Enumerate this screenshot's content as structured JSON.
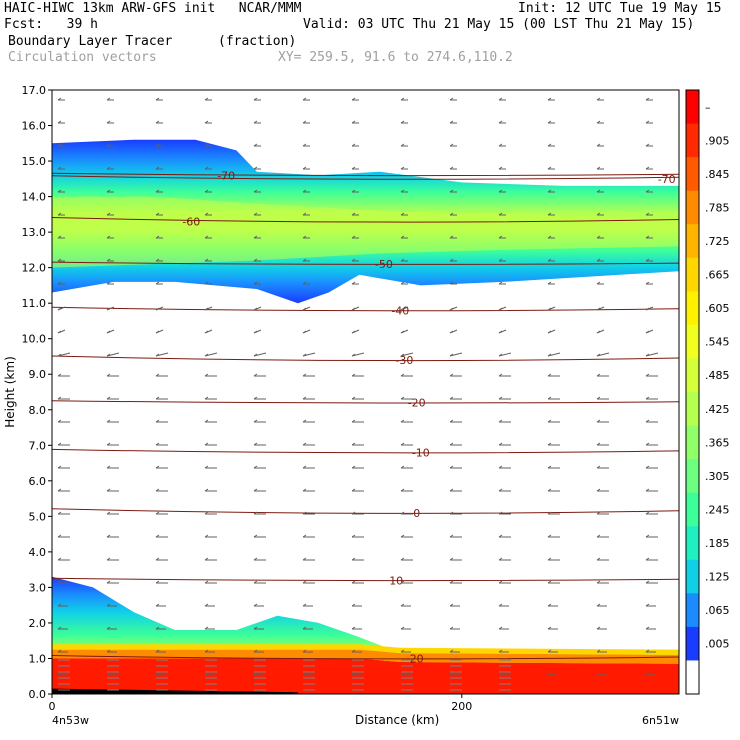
{
  "header": {
    "line1_left": "HAIC-HIWC 13km ARW-GFS init   NCAR/MMM",
    "line1_right": "Init: 12 UTC Tue 19 May 15",
    "line2_left": "Fcst:   39 h",
    "line2_right": "Valid: 03 UTC Thu 21 May 15 (00 LST Thu 21 May 15)",
    "line3_left": "Boundary Layer Tracer",
    "line3_units": "(fraction)",
    "line4_left": "Circulation vectors",
    "line4_xy": "XY= 259.5, 91.6 to 274.6,110.2"
  },
  "chart_data": {
    "type": "heatmap",
    "title": "Boundary Layer Tracer",
    "units": "(fraction)",
    "overlay": "Circulation vectors",
    "xlabel": "Distance (km)",
    "ylabel": "Height (km)",
    "xlim": [
      0,
      306
    ],
    "ylim": [
      0,
      17
    ],
    "x_ticks": [
      0,
      200
    ],
    "x_tick_labels": [
      "0",
      "200"
    ],
    "x_end_labels": [
      "4n53w",
      "6n51w"
    ],
    "y_ticks": [
      0.0,
      1.0,
      2.0,
      3.0,
      4.0,
      5.0,
      6.0,
      7.0,
      8.0,
      9.0,
      10.0,
      11.0,
      12.0,
      13.0,
      14.0,
      15.0,
      16.0,
      17.0
    ],
    "y_tick_labels": [
      "0.0",
      "1.0",
      "2.0",
      "3.0",
      "4.0",
      "5.0",
      "6.0",
      "7.0",
      "8.0",
      "9.0",
      "10.0",
      "11.0",
      "12.0",
      "13.0",
      "14.0",
      "15.0",
      "16.0",
      "17.0"
    ],
    "colorbar": {
      "labels": [
        "–",
        ".905",
        ".845",
        ".785",
        ".725",
        ".665",
        ".605",
        ".545",
        ".485",
        ".425",
        ".365",
        ".305",
        ".245",
        ".185",
        ".125",
        ".065",
        ".005"
      ],
      "colors": [
        "#ff0000",
        "#ff2a00",
        "#ff5a00",
        "#ff8c00",
        "#ffb400",
        "#ffd700",
        "#fff200",
        "#f0ff20",
        "#d4ff3a",
        "#b4ff50",
        "#90ff6a",
        "#6cff80",
        "#3cff9a",
        "#20f0c0",
        "#10d0e8",
        "#1a8cff",
        "#1a3cff",
        "#ffffff"
      ]
    },
    "upper_layer": {
      "top": [
        [
          0,
          15.5
        ],
        [
          40,
          15.6
        ],
        [
          70,
          15.6
        ],
        [
          90,
          15.3
        ],
        [
          100,
          14.7
        ],
        [
          130,
          14.6
        ],
        [
          160,
          14.7
        ],
        [
          200,
          14.4
        ],
        [
          250,
          14.3
        ],
        [
          306,
          14.3
        ]
      ],
      "bottom": [
        [
          0,
          11.3
        ],
        [
          30,
          11.6
        ],
        [
          60,
          11.6
        ],
        [
          100,
          11.4
        ],
        [
          120,
          11.0
        ],
        [
          135,
          11.3
        ],
        [
          150,
          11.8
        ],
        [
          180,
          11.5
        ],
        [
          220,
          11.6
        ],
        [
          306,
          11.9
        ]
      ],
      "core_top": [
        [
          0,
          14.0
        ],
        [
          50,
          14.0
        ],
        [
          100,
          13.8
        ],
        [
          160,
          13.6
        ],
        [
          220,
          13.5
        ],
        [
          306,
          13.4
        ]
      ],
      "core_bottom": [
        [
          0,
          12.0
        ],
        [
          50,
          12.1
        ],
        [
          100,
          12.2
        ],
        [
          160,
          12.4
        ],
        [
          220,
          12.5
        ],
        [
          306,
          12.6
        ]
      ]
    },
    "lower_layer": {
      "top": [
        [
          0,
          3.3
        ],
        [
          20,
          3.0
        ],
        [
          40,
          2.3
        ],
        [
          60,
          1.8
        ],
        [
          90,
          1.8
        ],
        [
          110,
          2.2
        ],
        [
          130,
          2.0
        ],
        [
          150,
          1.6
        ],
        [
          170,
          1.15
        ],
        [
          306,
          1.15
        ]
      ],
      "red_top": [
        [
          0,
          1.0
        ],
        [
          150,
          1.0
        ],
        [
          170,
          0.9
        ],
        [
          306,
          0.85
        ]
      ]
    },
    "temperature_contours": [
      {
        "label": "-70",
        "y": 14.6,
        "label_x": 85
      },
      {
        "label": "-70",
        "y": 14.5,
        "label_x": 300
      },
      {
        "label": "-60",
        "y": 13.3,
        "label_x": 68
      },
      {
        "label": "-50",
        "y": 12.1,
        "label_x": 162
      },
      {
        "label": "-40",
        "y": 10.8,
        "label_x": 170
      },
      {
        "label": "-30",
        "y": 9.4,
        "label_x": 172
      },
      {
        "label": "-20",
        "y": 8.2,
        "label_x": 178
      },
      {
        "label": "-10",
        "y": 6.8,
        "label_x": 180
      },
      {
        "label": "0",
        "y": 5.1,
        "label_x": 178
      },
      {
        "label": "10",
        "y": 3.2,
        "label_x": 168
      },
      {
        "label": "20",
        "y": 1.0,
        "label_x": 178
      }
    ]
  }
}
